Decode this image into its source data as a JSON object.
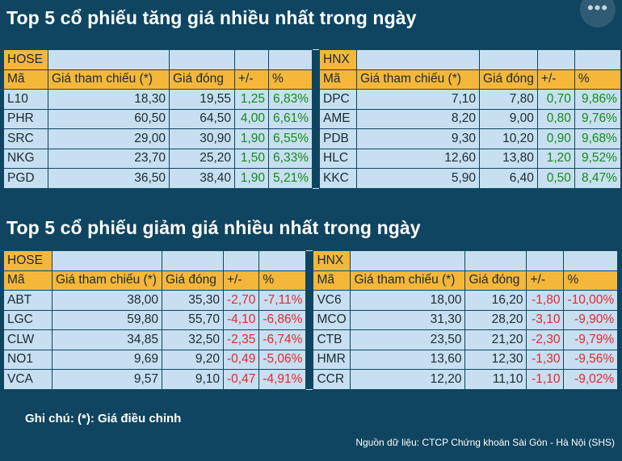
{
  "title_up": "Top 5 cổ phiếu tăng giá nhiều nhất trong ngày",
  "title_down": "Top 5 cổ phiếu giảm giá nhiều nhất trong ngày",
  "menu_label": "•••",
  "columns": [
    "Mã",
    "Giá tham chiếu (*)",
    "Giá đóng",
    "+/-",
    "%"
  ],
  "gainers": {
    "hose": {
      "exchange": "HOSE",
      "rows": [
        [
          "L10",
          "18,30",
          "19,55",
          "1,25",
          "6,83%"
        ],
        [
          "PHR",
          "60,50",
          "64,50",
          "4,00",
          "6,61%"
        ],
        [
          "SRC",
          "29,00",
          "30,90",
          "1,90",
          "6,55%"
        ],
        [
          "NKG",
          "23,70",
          "25,20",
          "1,50",
          "6,33%"
        ],
        [
          "PGD",
          "36,50",
          "38,40",
          "1,90",
          "5,21%"
        ]
      ]
    },
    "hnx": {
      "exchange": "HNX",
      "rows": [
        [
          "DPC",
          "7,10",
          "7,80",
          "0,70",
          "9,86%"
        ],
        [
          "AME",
          "8,20",
          "9,00",
          "0,80",
          "9,76%"
        ],
        [
          "PDB",
          "9,30",
          "10,20",
          "0,90",
          "9,68%"
        ],
        [
          "HLC",
          "12,60",
          "13,80",
          "1,20",
          "9,52%"
        ],
        [
          "KKC",
          "5,90",
          "6,40",
          "0,50",
          "8,47%"
        ]
      ]
    }
  },
  "losers": {
    "hose": {
      "exchange": "HOSE",
      "rows": [
        [
          "ABT",
          "38,00",
          "35,30",
          "-2,70",
          "-7,11%"
        ],
        [
          "LGC",
          "59,80",
          "55,70",
          "-4,10",
          "-6,86%"
        ],
        [
          "CLW",
          "34,85",
          "32,50",
          "-2,35",
          "-6,74%"
        ],
        [
          "NO1",
          "9,69",
          "9,20",
          "-0,49",
          "-5,06%"
        ],
        [
          "VCA",
          "9,57",
          "9,10",
          "-0,47",
          "-4,91%"
        ]
      ]
    },
    "hnx": {
      "exchange": "HNX",
      "rows": [
        [
          "VC6",
          "18,00",
          "16,20",
          "-1,80",
          "-10,00%"
        ],
        [
          "MCO",
          "31,30",
          "28,20",
          "-3,10",
          "-9,90%"
        ],
        [
          "CTB",
          "23,50",
          "21,20",
          "-2,30",
          "-9,79%"
        ],
        [
          "HMR",
          "13,60",
          "12,30",
          "-1,30",
          "-9,56%"
        ],
        [
          "CCR",
          "12,20",
          "11,10",
          "-1,10",
          "-9,02%"
        ]
      ]
    }
  },
  "colors": {
    "up": "#178a1b",
    "down": "#e2282f",
    "header": "#f5b73a",
    "cell": "#c7dff0",
    "background": "#0f4560"
  },
  "note": "Ghi chú: (*): Giá điều chỉnh",
  "source": "Nguồn dữ liệu: CTCP Chứng khoán Sài Gòn - Hà Nội (SHS)"
}
